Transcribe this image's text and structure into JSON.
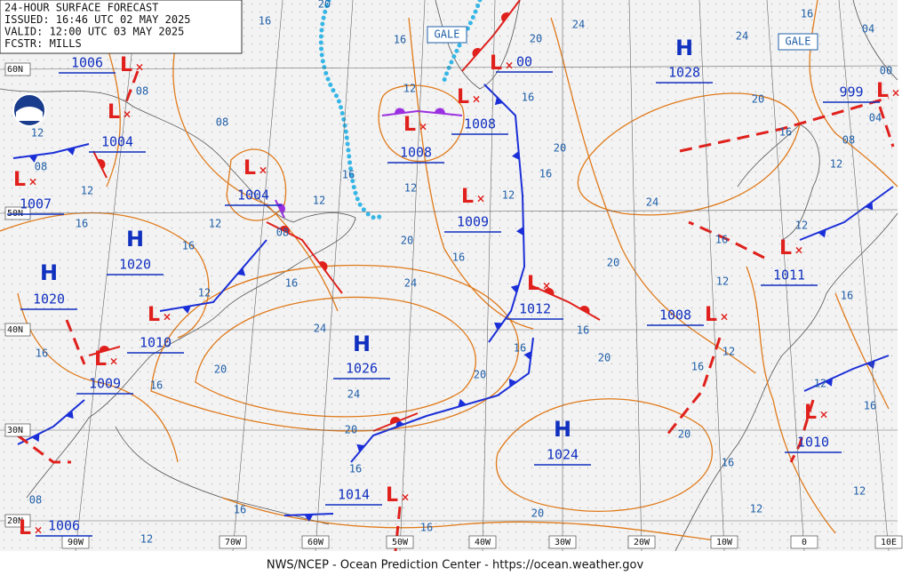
{
  "header": {
    "lines": [
      "24-HOUR SURFACE FORECAST",
      "ISSUED: 16:46 UTC 02 MAY 2025",
      "VALID:  12:00 UTC 03 MAY 2025",
      "FCSTR:  MILLS"
    ]
  },
  "footer": "NWS/NCEP - Ocean Prediction Center - https://ocean.weather.gov",
  "lat_labels": [
    "60N",
    "50N",
    "40N",
    "30N",
    "20N"
  ],
  "lon_labels": [
    "90W",
    "70W",
    "60W",
    "50W",
    "40W",
    "30W",
    "20W",
    "10W",
    "0",
    "10E"
  ],
  "gale": [
    "GALE",
    "GALE"
  ],
  "highs": [
    {
      "symbol": "H",
      "pressure": "1028"
    },
    {
      "symbol": "H",
      "pressure": "1020"
    },
    {
      "symbol": "H",
      "pressure": "1020"
    },
    {
      "symbol": "H",
      "pressure": "1026"
    },
    {
      "symbol": "H",
      "pressure": "1024"
    }
  ],
  "lows": [
    {
      "symbol": "L",
      "pressure": "1006"
    },
    {
      "symbol": "L",
      "pressure": "1004"
    },
    {
      "symbol": "L",
      "pressure": "1007"
    },
    {
      "symbol": "L",
      "pressure": "1004"
    },
    {
      "symbol": "L",
      "pressure": "1008"
    },
    {
      "symbol": "L",
      "pressure": "1008"
    },
    {
      "symbol": "L",
      "pressure": "1009"
    },
    {
      "symbol": "L",
      "pressure": "1012"
    },
    {
      "symbol": "L",
      "pressure": "1010"
    },
    {
      "symbol": "L",
      "pressure": "1009"
    },
    {
      "symbol": "L",
      "pressure": "1014"
    },
    {
      "symbol": "L",
      "pressure": "1006"
    },
    {
      "symbol": "L",
      "pressure": "1008"
    },
    {
      "symbol": "L",
      "pressure": "1011"
    },
    {
      "symbol": "L",
      "pressure": "999"
    },
    {
      "symbol": "L",
      "pressure": "1010"
    },
    {
      "symbol": "L",
      "pressure": "00"
    }
  ],
  "isobar_labels": [
    "20",
    "16",
    "16",
    "12",
    "08",
    "16",
    "12",
    "12",
    "08",
    "12",
    "16",
    "12",
    "08",
    "12",
    "08",
    "16",
    "12",
    "16",
    "24",
    "20",
    "16",
    "12",
    "16",
    "20",
    "16",
    "20",
    "24",
    "24",
    "16",
    "04",
    "00",
    "04",
    "08",
    "12",
    "16",
    "20",
    "24",
    "20",
    "16",
    "12",
    "12",
    "16",
    "12",
    "16",
    "20",
    "16",
    "16",
    "20",
    "24",
    "20",
    "16",
    "16",
    "24",
    "20",
    "16",
    "20",
    "16",
    "12",
    "16",
    "12",
    "12",
    "20",
    "16",
    "16",
    "12",
    "08"
  ]
}
